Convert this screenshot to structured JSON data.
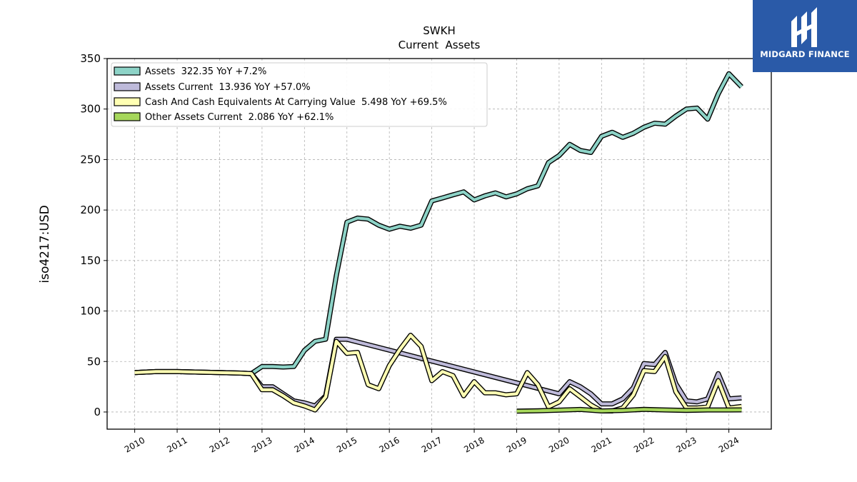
{
  "chart_data": {
    "type": "line",
    "title": "SWKH",
    "subtitle": "Current  Assets",
    "ylabel": "iso4217:USD",
    "xlabel": "",
    "xlim": [
      2009.35,
      2025.0
    ],
    "ylim": [
      -17,
      350
    ],
    "yticks": [
      0,
      50,
      100,
      150,
      200,
      250,
      300,
      350
    ],
    "xticks": [
      2010,
      2011,
      2012,
      2013,
      2014,
      2015,
      2016,
      2017,
      2018,
      2019,
      2020,
      2021,
      2022,
      2023,
      2024
    ],
    "grid": true,
    "legend_position": "top-left",
    "series": [
      {
        "name": "Assets  322.35 YoY +7.2%",
        "color": "#8dd3c7",
        "points": [
          [
            2010.0,
            39
          ],
          [
            2010.5,
            40
          ],
          [
            2011.0,
            40
          ],
          [
            2011.5,
            39.5
          ],
          [
            2012.0,
            39
          ],
          [
            2012.5,
            38.5
          ],
          [
            2012.75,
            38
          ],
          [
            2013.0,
            45
          ],
          [
            2013.25,
            45
          ],
          [
            2013.5,
            44.5
          ],
          [
            2013.75,
            45
          ],
          [
            2014.0,
            61
          ],
          [
            2014.25,
            70
          ],
          [
            2014.5,
            72
          ],
          [
            2014.75,
            135
          ],
          [
            2015.0,
            188
          ],
          [
            2015.25,
            192
          ],
          [
            2015.5,
            191
          ],
          [
            2015.75,
            185
          ],
          [
            2016.0,
            181
          ],
          [
            2016.25,
            184
          ],
          [
            2016.5,
            182
          ],
          [
            2016.75,
            185
          ],
          [
            2017.0,
            209
          ],
          [
            2017.25,
            212
          ],
          [
            2017.5,
            215
          ],
          [
            2017.75,
            218
          ],
          [
            2018.0,
            210
          ],
          [
            2018.25,
            214
          ],
          [
            2018.5,
            217
          ],
          [
            2018.75,
            213
          ],
          [
            2019.0,
            216
          ],
          [
            2019.25,
            221
          ],
          [
            2019.5,
            224
          ],
          [
            2019.75,
            247
          ],
          [
            2020.0,
            254
          ],
          [
            2020.25,
            265
          ],
          [
            2020.5,
            259
          ],
          [
            2020.75,
            257
          ],
          [
            2021.0,
            273
          ],
          [
            2021.25,
            277
          ],
          [
            2021.5,
            272
          ],
          [
            2021.75,
            276
          ],
          [
            2022.0,
            282
          ],
          [
            2022.25,
            286
          ],
          [
            2022.5,
            285
          ],
          [
            2022.75,
            293
          ],
          [
            2023.0,
            300
          ],
          [
            2023.25,
            301
          ],
          [
            2023.5,
            290
          ],
          [
            2023.75,
            315
          ],
          [
            2024.0,
            335
          ],
          [
            2024.3,
            322
          ]
        ]
      },
      {
        "name": "Assets Current  13.936 YoY +57.0%",
        "color": "#bebada",
        "points": [
          [
            2010.0,
            39
          ],
          [
            2010.5,
            40
          ],
          [
            2011.0,
            40
          ],
          [
            2011.5,
            39.5
          ],
          [
            2012.0,
            39
          ],
          [
            2012.5,
            38.5
          ],
          [
            2012.75,
            38
          ],
          [
            2013.0,
            25
          ],
          [
            2013.25,
            25
          ],
          [
            2013.5,
            18
          ],
          [
            2013.75,
            11
          ],
          [
            2014.0,
            9
          ],
          [
            2014.25,
            6
          ],
          [
            2014.5,
            16
          ],
          [
            2014.75,
            72
          ],
          [
            2015.0,
            72
          ],
          [
            2020.0,
            18
          ],
          [
            2020.25,
            30
          ],
          [
            2020.5,
            25
          ],
          [
            2020.75,
            18
          ],
          [
            2021.0,
            8
          ],
          [
            2021.25,
            8
          ],
          [
            2021.5,
            13
          ],
          [
            2021.75,
            24
          ],
          [
            2022.0,
            48
          ],
          [
            2022.25,
            47
          ],
          [
            2022.5,
            59
          ],
          [
            2022.75,
            28
          ],
          [
            2023.0,
            11
          ],
          [
            2023.25,
            10
          ],
          [
            2023.5,
            13
          ],
          [
            2023.75,
            38
          ],
          [
            2024.0,
            13
          ],
          [
            2024.3,
            14
          ]
        ]
      },
      {
        "name": "Cash And Cash Equivalents At Carrying Value  5.498 YoY +69.5%",
        "color": "#ffffb3",
        "points": [
          [
            2010.0,
            39
          ],
          [
            2010.5,
            40
          ],
          [
            2011.0,
            40
          ],
          [
            2011.5,
            39.5
          ],
          [
            2012.0,
            39
          ],
          [
            2012.5,
            38.5
          ],
          [
            2012.75,
            38
          ],
          [
            2013.0,
            22
          ],
          [
            2013.25,
            22
          ],
          [
            2013.5,
            16
          ],
          [
            2013.75,
            9
          ],
          [
            2014.0,
            6
          ],
          [
            2014.25,
            2
          ],
          [
            2014.5,
            15
          ],
          [
            2014.75,
            70
          ],
          [
            2015.0,
            58
          ],
          [
            2015.25,
            59
          ],
          [
            2015.5,
            27
          ],
          [
            2015.75,
            23
          ],
          [
            2016.0,
            46
          ],
          [
            2016.25,
            62
          ],
          [
            2016.5,
            76
          ],
          [
            2016.75,
            65
          ],
          [
            2017.0,
            31
          ],
          [
            2017.25,
            40
          ],
          [
            2017.5,
            36
          ],
          [
            2017.75,
            16
          ],
          [
            2018.0,
            30
          ],
          [
            2018.25,
            19
          ],
          [
            2018.5,
            19
          ],
          [
            2018.75,
            17
          ],
          [
            2019.0,
            18
          ],
          [
            2019.25,
            39
          ],
          [
            2019.5,
            27
          ],
          [
            2019.75,
            5
          ],
          [
            2020.0,
            10
          ],
          [
            2020.25,
            23
          ],
          [
            2020.5,
            15
          ],
          [
            2020.75,
            7
          ],
          [
            2021.0,
            1
          ],
          [
            2021.25,
            1
          ],
          [
            2021.5,
            4
          ],
          [
            2021.75,
            17
          ],
          [
            2022.0,
            41
          ],
          [
            2022.25,
            40
          ],
          [
            2022.5,
            55
          ],
          [
            2022.75,
            20
          ],
          [
            2023.0,
            4
          ],
          [
            2023.25,
            4
          ],
          [
            2023.5,
            5
          ],
          [
            2023.75,
            31
          ],
          [
            2024.0,
            4
          ],
          [
            2024.3,
            5.5
          ]
        ]
      },
      {
        "name": "Other Assets Current  2.086 YoY +62.1%",
        "color": "#a6d75b",
        "points": [
          [
            2019.0,
            0.8
          ],
          [
            2019.5,
            1.2
          ],
          [
            2020.0,
            1.8
          ],
          [
            2020.5,
            2.5
          ],
          [
            2021.0,
            1.0
          ],
          [
            2021.5,
            1.5
          ],
          [
            2022.0,
            2.6
          ],
          [
            2022.5,
            2.0
          ],
          [
            2023.0,
            1.6
          ],
          [
            2023.5,
            2.0
          ],
          [
            2024.0,
            2.0
          ],
          [
            2024.3,
            2.1
          ]
        ]
      }
    ]
  },
  "branding": {
    "logo_text": "MIDGARD FINANCE",
    "logo_color": "#2a5aa8"
  }
}
